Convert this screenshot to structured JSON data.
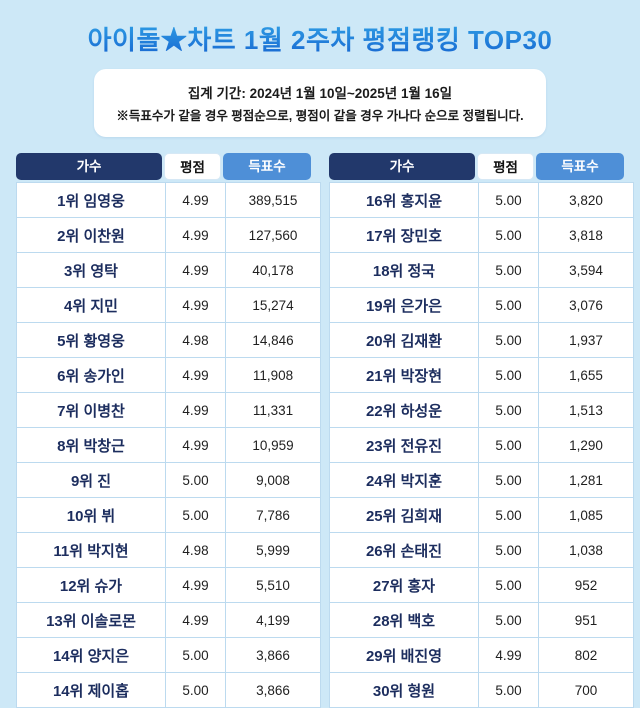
{
  "header": {
    "title": "아이돌★차트 1월 2주차 평점랭킹 TOP30",
    "period": "집계 기간: 2024년 1월 10일~2025년 1월 16일",
    "note": "※득표수가 같을 경우 평점순으로, 평점이 같을 경우 가나다 순으로 정렬됩니다."
  },
  "colors": {
    "page_background": "#cde8f7",
    "title_gradient_top": "#3ec3f2",
    "title_gradient_bottom": "#1766d1",
    "header_singer_bg": "#22386b",
    "header_votes_bg": "#4e8fd7",
    "cell_border": "#bcdaef",
    "artist_text": "#1c2d5e"
  },
  "chart_data": {
    "type": "table",
    "title": "아이돌★차트 1월 2주차 평점랭킹 TOP30",
    "columns": [
      "가수",
      "평점",
      "득표수"
    ],
    "tables": [
      {
        "rows": [
          [
            "1위 임영웅",
            "4.99",
            "389,515"
          ],
          [
            "2위 이찬원",
            "4.99",
            "127,560"
          ],
          [
            "3위 영탁",
            "4.99",
            "40,178"
          ],
          [
            "4위 지민",
            "4.99",
            "15,274"
          ],
          [
            "5위 황영웅",
            "4.98",
            "14,846"
          ],
          [
            "6위 송가인",
            "4.99",
            "11,908"
          ],
          [
            "7위 이병찬",
            "4.99",
            "11,331"
          ],
          [
            "8위 박창근",
            "4.99",
            "10,959"
          ],
          [
            "9위 진",
            "5.00",
            "9,008"
          ],
          [
            "10위 뷔",
            "5.00",
            "7,786"
          ],
          [
            "11위 박지현",
            "4.98",
            "5,999"
          ],
          [
            "12위 슈가",
            "4.99",
            "5,510"
          ],
          [
            "13위 이솔로몬",
            "4.99",
            "4,199"
          ],
          [
            "14위 양지은",
            "5.00",
            "3,866"
          ],
          [
            "14위 제이홉",
            "5.00",
            "3,866"
          ]
        ]
      },
      {
        "rows": [
          [
            "16위 홍지윤",
            "5.00",
            "3,820"
          ],
          [
            "17위 장민호",
            "5.00",
            "3,818"
          ],
          [
            "18위 정국",
            "5.00",
            "3,594"
          ],
          [
            "19위 은가은",
            "5.00",
            "3,076"
          ],
          [
            "20위 김재환",
            "5.00",
            "1,937"
          ],
          [
            "21위 박장현",
            "5.00",
            "1,655"
          ],
          [
            "22위 하성운",
            "5.00",
            "1,513"
          ],
          [
            "23위 전유진",
            "5.00",
            "1,290"
          ],
          [
            "24위 박지훈",
            "5.00",
            "1,281"
          ],
          [
            "25위 김희재",
            "5.00",
            "1,085"
          ],
          [
            "26위 손태진",
            "5.00",
            "1,038"
          ],
          [
            "27위 홍자",
            "5.00",
            "952"
          ],
          [
            "28위 백호",
            "5.00",
            "951"
          ],
          [
            "29위 배진영",
            "4.99",
            "802"
          ],
          [
            "30위 형원",
            "5.00",
            "700"
          ]
        ]
      }
    ]
  }
}
